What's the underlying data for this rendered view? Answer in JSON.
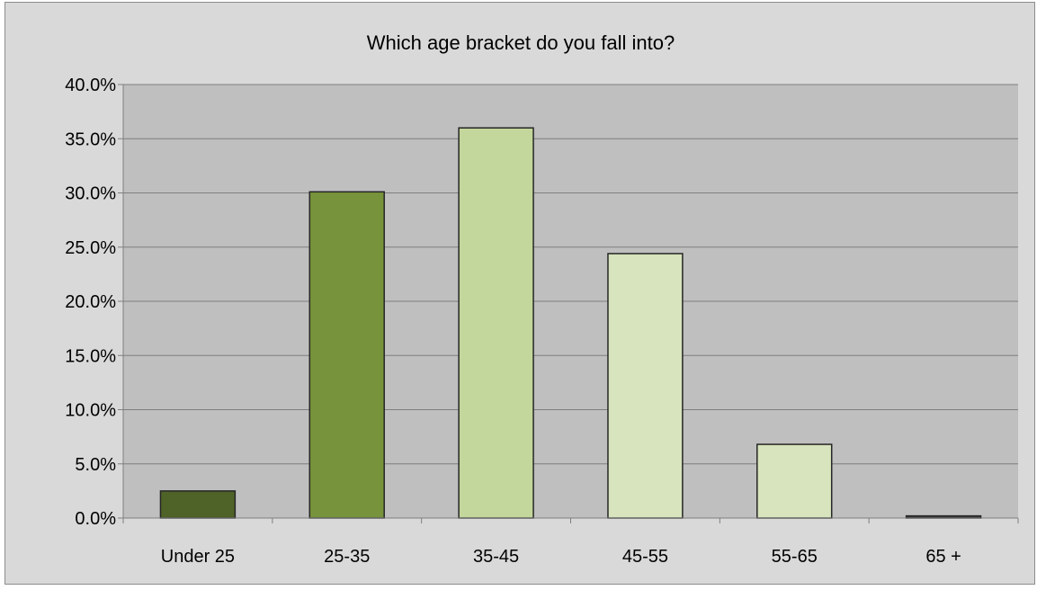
{
  "chart_data": {
    "type": "bar",
    "title": "Which age bracket do you fall into?",
    "xlabel": "",
    "ylabel": "",
    "categories": [
      "Under 25",
      "25-35",
      "35-45",
      "45-55",
      "55-65",
      "65 +"
    ],
    "values": [
      2.5,
      30.1,
      36.0,
      24.4,
      6.8,
      0.2
    ],
    "ylim": [
      0,
      40
    ],
    "yticks": [
      0,
      5,
      10,
      15,
      20,
      25,
      30,
      35,
      40
    ],
    "ytick_labels": [
      "0.0%",
      "5.0%",
      "10.0%",
      "15.0%",
      "20.0%",
      "25.0%",
      "30.0%",
      "35.0%",
      "40.0%"
    ],
    "grid": true,
    "legend": "none",
    "colors": {
      "chart_background": "#d9d9d9",
      "plot_background": "#bfbfbf",
      "gridline": "#7f7f7f",
      "bar_outline": "#262626",
      "bars": [
        "#4f6228",
        "#77933c",
        "#c3d69b",
        "#d7e4bd",
        "#d7e4bd",
        "#3a3a3a"
      ]
    }
  }
}
